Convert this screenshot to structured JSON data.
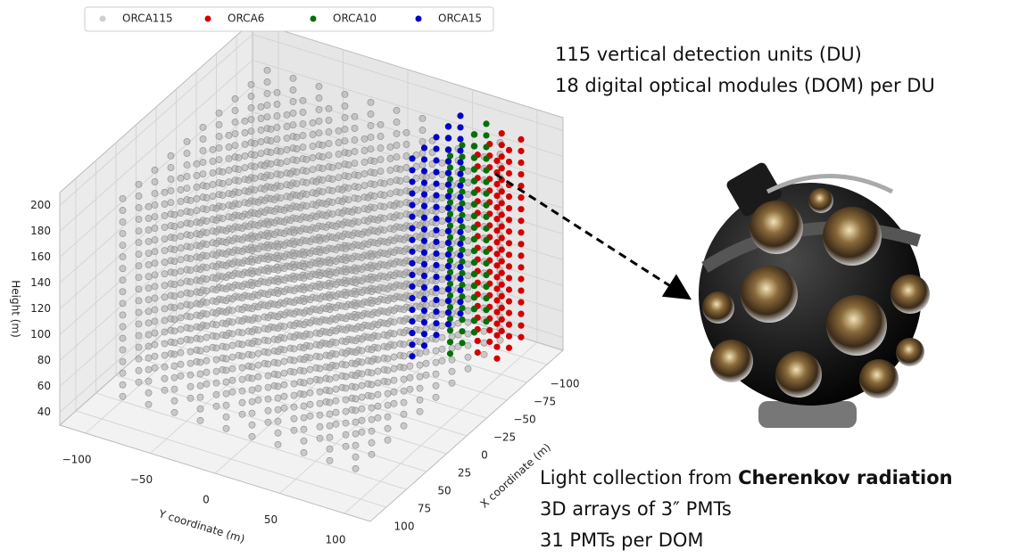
{
  "chart_data": {
    "type": "scatter3d",
    "xlabel": "X coordinate (m)",
    "ylabel": "Y coordinate (m)",
    "zlabel": "Height (m)",
    "xlim": [
      -120,
      120
    ],
    "ylim": [
      -120,
      120
    ],
    "zlim": [
      30,
      210
    ],
    "xticks": [
      {
        "value": -100,
        "label": "−100"
      },
      {
        "value": -75,
        "label": "−75"
      },
      {
        "value": -50,
        "label": "−50"
      },
      {
        "value": -25,
        "label": "−25"
      },
      0,
      25,
      50,
      75,
      100
    ],
    "yticks": [
      {
        "value": -100,
        "label": "−100"
      },
      {
        "value": -50,
        "label": "−50"
      },
      0,
      50,
      100
    ],
    "zticks": [
      40,
      60,
      80,
      100,
      120,
      140,
      160,
      180,
      200
    ],
    "grid": true,
    "z": [
      45,
      54,
      63,
      72,
      81,
      90,
      99,
      108,
      117,
      126,
      135,
      144,
      153,
      162,
      171,
      180,
      189,
      198
    ],
    "series": [
      {
        "name": "ORCA115",
        "color": "#a8a8a8",
        "x": [
          -90,
          -70,
          -50,
          -30,
          -10,
          10,
          30,
          50,
          70,
          90,
          -90,
          -70,
          -50,
          -30,
          -10,
          10,
          30,
          50,
          70,
          90,
          -90,
          -70,
          -50,
          -30,
          -10,
          10,
          30,
          50,
          70,
          90,
          -90,
          -70,
          -50,
          -30,
          -10,
          10,
          30,
          50,
          70,
          90,
          -90,
          -70,
          -50,
          -30,
          -10,
          10,
          30,
          50,
          70,
          90,
          -90,
          -70,
          -50,
          -30,
          -10,
          10,
          30,
          50,
          70,
          90,
          -90,
          -70,
          -50,
          -30,
          -10,
          10,
          30,
          50,
          70,
          90,
          -90,
          -70,
          -50,
          -30,
          -10,
          10,
          30,
          50,
          70,
          90,
          -90,
          -70,
          -50,
          -30,
          -10,
          10,
          30,
          50,
          70,
          90,
          -90,
          -70,
          -50,
          -30,
          -10,
          10,
          30,
          50,
          70,
          90
        ],
        "y": [
          -90,
          -90,
          -90,
          -90,
          -90,
          -90,
          -90,
          -90,
          -90,
          -90,
          -70,
          -70,
          -70,
          -70,
          -70,
          -70,
          -70,
          -70,
          -70,
          -70,
          -50,
          -50,
          -50,
          -50,
          -50,
          -50,
          -50,
          -50,
          -50,
          -50,
          -30,
          -30,
          -30,
          -30,
          -30,
          -30,
          -30,
          -30,
          -30,
          -30,
          -10,
          -10,
          -10,
          -10,
          -10,
          -10,
          -10,
          -10,
          -10,
          -10,
          10,
          10,
          10,
          10,
          10,
          10,
          10,
          10,
          10,
          10,
          30,
          30,
          30,
          30,
          30,
          30,
          30,
          30,
          30,
          30,
          50,
          50,
          50,
          50,
          50,
          50,
          50,
          50,
          50,
          50,
          70,
          70,
          70,
          70,
          70,
          70,
          70,
          70,
          70,
          70,
          90,
          90,
          90,
          90,
          90,
          90,
          90,
          90,
          90,
          90
        ]
      },
      {
        "name": "ORCA6",
        "color": "#d40000",
        "x": [
          -100,
          -85,
          -70,
          -100,
          -85,
          -70
        ],
        "y": [
          100,
          100,
          100,
          85,
          85,
          85
        ]
      },
      {
        "name": "ORCA10",
        "color": "#067006",
        "x": [
          -105,
          -90,
          -75,
          -60
        ],
        "y": [
          70,
          70,
          70,
          70
        ]
      },
      {
        "name": "ORCA15",
        "color": "#0000c8",
        "x": [
          -105,
          -90,
          -75,
          -60,
          -45
        ],
        "y": [
          50,
          50,
          50,
          50,
          50
        ]
      }
    ]
  },
  "notes": {
    "top": [
      "115 vertical detection units (DU)",
      "18 digital optical modules (DOM) per DU"
    ],
    "light_prefix": "Light collection from ",
    "light_bold": "Cherenkov radiation",
    "bottom": [
      "3D arrays of 3″ PMTs",
      "31 PMTs per DOM"
    ]
  }
}
